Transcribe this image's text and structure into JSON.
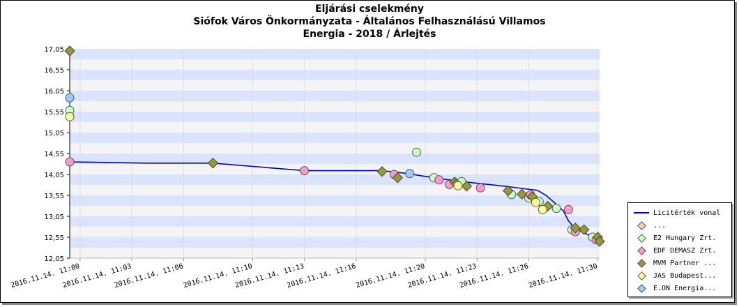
{
  "title_lines": [
    "Eljárási cselekmény",
    "Siófok Város Önkormányzata - Általános Felhasználású Villamos",
    "Energia - 2018 / Árlejtés"
  ],
  "chart_data": {
    "type": "scatter",
    "x_unit": "minutes after 2016.11.14. 11:00",
    "y_ticks": [
      "12,05",
      "12,55",
      "13,05",
      "13,55",
      "14,05",
      "14,55",
      "15,05",
      "15,55",
      "16,05",
      "16,55",
      "17,05"
    ],
    "x_ticks": [
      "2016.11.14. 11:00",
      "2016.11.14. 11:03",
      "2016.11.14. 11:06",
      "2016.11.14. 11:10",
      "2016.11.14. 11:13",
      "2016.11.14. 11:16",
      "2016.11.14. 11:20",
      "2016.11.14. 11:23",
      "2016.11.14. 11:26",
      "2016.11.14. 11:30"
    ],
    "ylim": [
      12.05,
      17.05
    ],
    "grid": true,
    "legend_position": "bottom-right",
    "series": [
      {
        "name": "Licitérték vonal",
        "kind": "line",
        "color": "#0000cc",
        "x": [
          -0.6,
          3.9,
          7.7,
          13.0,
          17.5,
          19.0,
          20.5,
          22.1,
          24.8,
          25.9,
          26.5,
          27.0,
          27.5,
          28.0,
          28.3,
          28.7,
          29.2,
          29.7,
          29.9
        ],
        "y": [
          14.35,
          14.32,
          14.32,
          14.14,
          14.14,
          14.07,
          13.97,
          13.88,
          13.76,
          13.7,
          13.67,
          13.55,
          13.37,
          13.18,
          12.94,
          12.75,
          12.66,
          12.55,
          12.49
        ]
      },
      {
        "name": "...",
        "color": "#ffc8aa",
        "x": [],
        "y": []
      },
      {
        "name": "E2 Hungary Zrt.",
        "color": "#c8ffc8",
        "x": [
          -0.6,
          19.5,
          20.5,
          22.1,
          25.0,
          26.0,
          26.6,
          27.6,
          28.5,
          29.7
        ],
        "y": [
          15.58,
          14.58,
          13.97,
          13.88,
          13.57,
          13.49,
          13.4,
          13.24,
          12.73,
          12.55
        ]
      },
      {
        "name": "EDF DEMASZ Zrt.",
        "color": "#ff99cc",
        "x": [
          -0.6,
          13.0,
          18.2,
          20.8,
          21.4,
          23.2,
          26.1,
          28.3,
          28.7,
          29.9
        ],
        "y": [
          14.35,
          14.14,
          14.05,
          13.92,
          13.81,
          13.73,
          13.56,
          13.21,
          12.68,
          12.49
        ]
      },
      {
        "name": "MVM Partner ...",
        "color": "#999933",
        "x": [
          -0.6,
          7.7,
          17.5,
          18.4,
          21.7,
          21.8,
          22.4,
          24.8,
          25.6,
          26.2,
          27.1,
          28.7,
          29.2,
          30.0,
          30.1
        ],
        "y": [
          17.0,
          14.32,
          14.12,
          13.97,
          13.87,
          13.82,
          13.77,
          13.66,
          13.58,
          13.52,
          13.29,
          12.77,
          12.73,
          12.55,
          12.45
        ]
      },
      {
        "name": "JAS Budapest...",
        "color": "#ffff99",
        "x": [
          -0.6,
          21.9,
          26.4,
          26.8
        ],
        "y": [
          15.43,
          13.78,
          13.38,
          13.21
        ]
      },
      {
        "name": "E.ON Energia...",
        "color": "#99ccff",
        "x": [
          -0.6,
          19.1
        ],
        "y": [
          15.88,
          14.07
        ]
      }
    ]
  }
}
